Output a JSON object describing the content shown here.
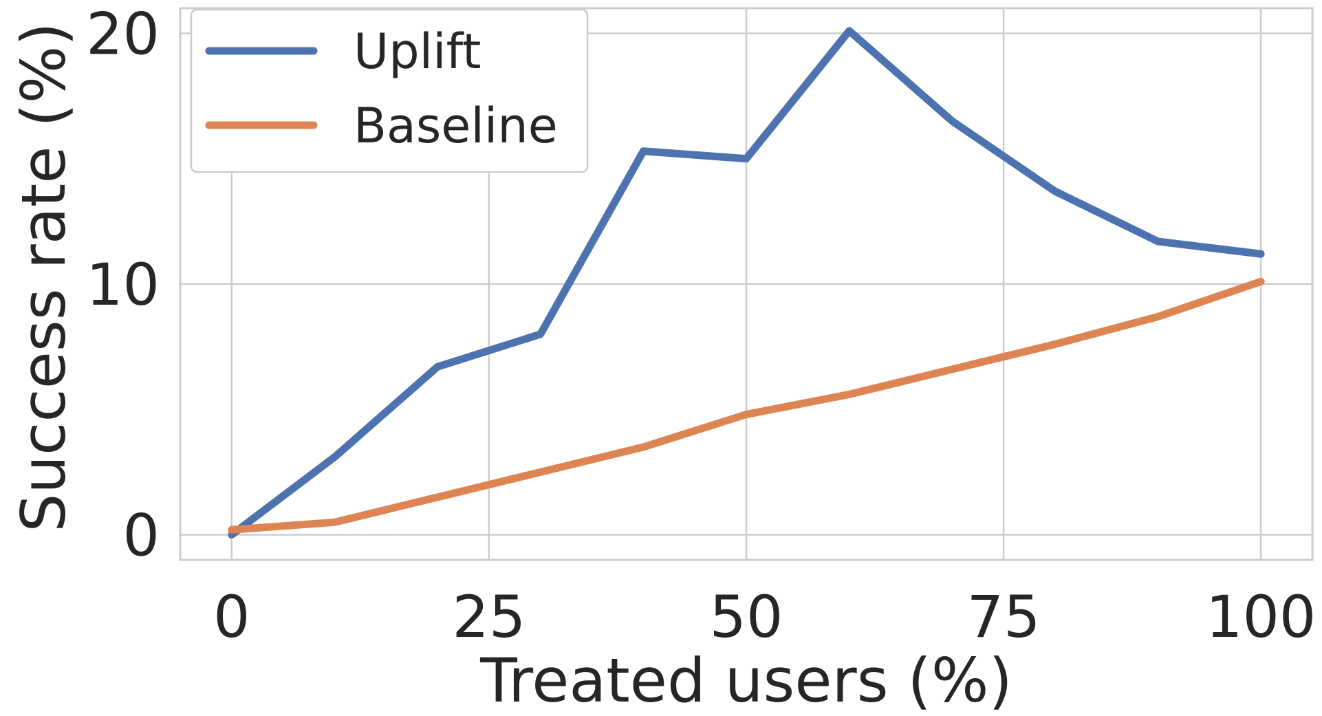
{
  "chart_data": {
    "type": "line",
    "xlabel": "Treated users (%)",
    "ylabel": "Success rate (%)",
    "x": [
      0,
      10,
      20,
      30,
      40,
      50,
      60,
      70,
      80,
      90,
      100
    ],
    "xticks": [
      0,
      25,
      50,
      75,
      100
    ],
    "yticks": [
      0,
      10,
      20
    ],
    "xlim": [
      -5,
      105
    ],
    "ylim": [
      -1,
      21
    ],
    "grid": true,
    "legend_position": "top-left",
    "series": [
      {
        "name": "Uplift",
        "color": "#4c72b0",
        "values": [
          0.0,
          3.1,
          6.7,
          8.0,
          15.3,
          15.0,
          20.1,
          16.5,
          13.7,
          11.7,
          11.2
        ]
      },
      {
        "name": "Baseline",
        "color": "#dd8452",
        "values": [
          0.2,
          0.5,
          1.5,
          2.5,
          3.5,
          4.8,
          5.6,
          6.6,
          7.6,
          8.7,
          10.1
        ]
      }
    ]
  }
}
